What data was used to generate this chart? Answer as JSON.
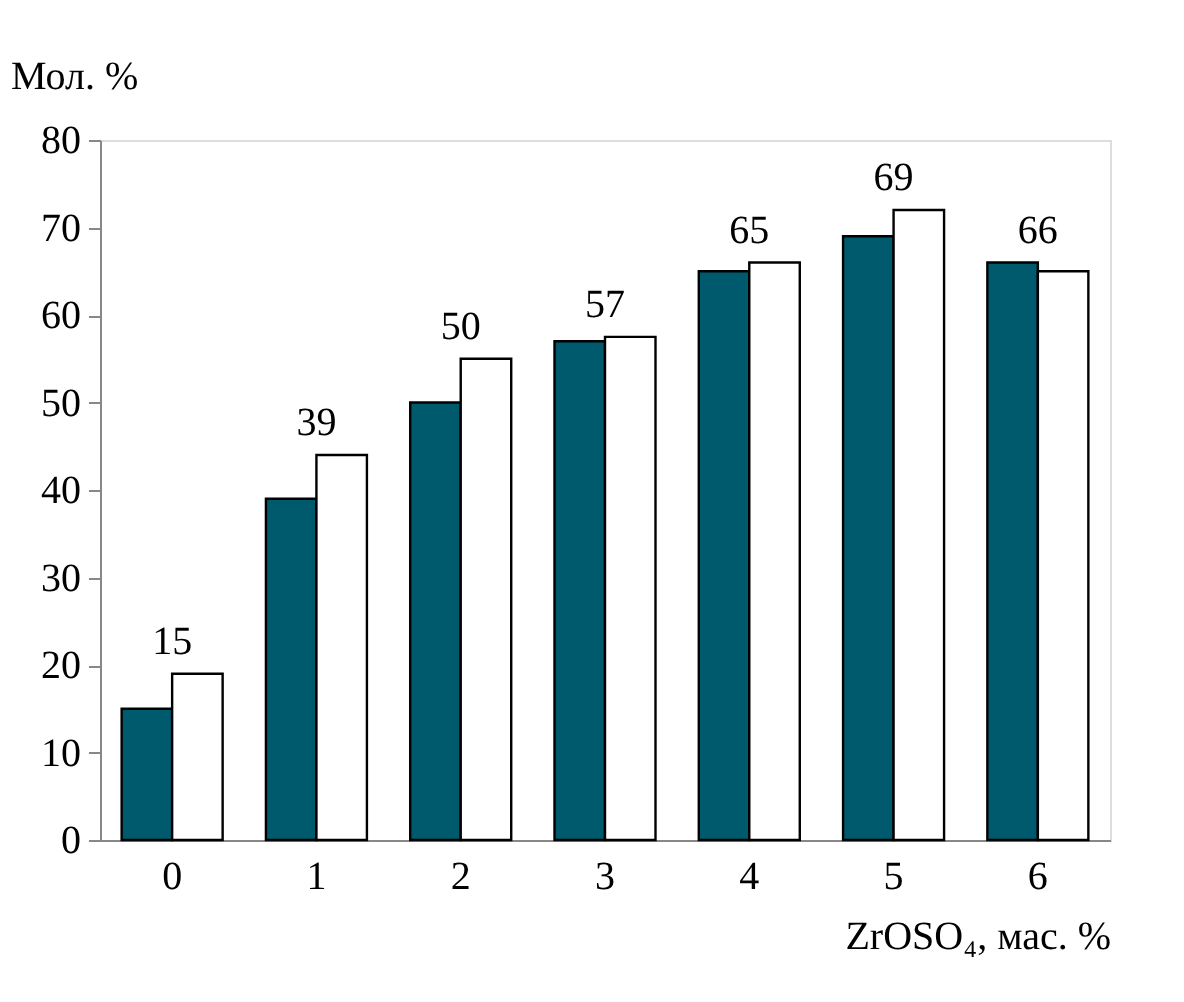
{
  "chart_data": {
    "type": "bar",
    "xlabel": "ZrOSO₄, мас. %",
    "ylabel": "Мол. %",
    "categories": [
      "0",
      "1",
      "2",
      "3",
      "4",
      "5",
      "6"
    ],
    "series": [
      {
        "color": "#005a6e",
        "values": [
          15,
          39,
          50,
          57,
          65,
          69,
          66
        ],
        "value_labels": [
          "15",
          "39",
          "50",
          "57",
          "65",
          "69",
          "66"
        ]
      },
      {
        "color": "#ffffff",
        "values": [
          19,
          44,
          55,
          57.5,
          66,
          72,
          65
        ]
      }
    ],
    "ylim": [
      0,
      80
    ],
    "yticks": [
      0,
      10,
      20,
      30,
      40,
      50,
      60,
      70,
      80
    ],
    "grid": false,
    "legend": false
  }
}
